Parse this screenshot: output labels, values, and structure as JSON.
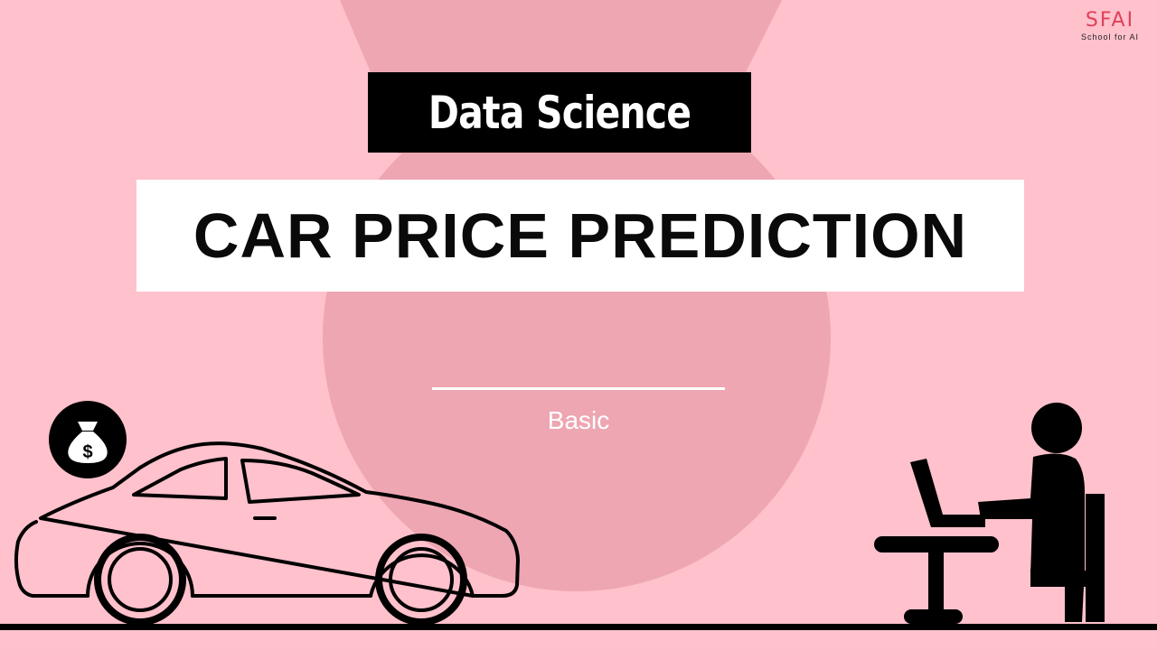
{
  "logo": {
    "mark": "SFAI",
    "subtitle": "School for AI"
  },
  "tag": "Data Science",
  "title": "CAR PRICE PREDICTION",
  "level": "Basic",
  "colors": {
    "background": "#ffc1cc",
    "accent_shape": "#eda6b2",
    "logo": "#e0405a",
    "ink": "#000000"
  },
  "icons": [
    "money-bag-icon",
    "car-illustration",
    "person-at-desk-illustration"
  ]
}
